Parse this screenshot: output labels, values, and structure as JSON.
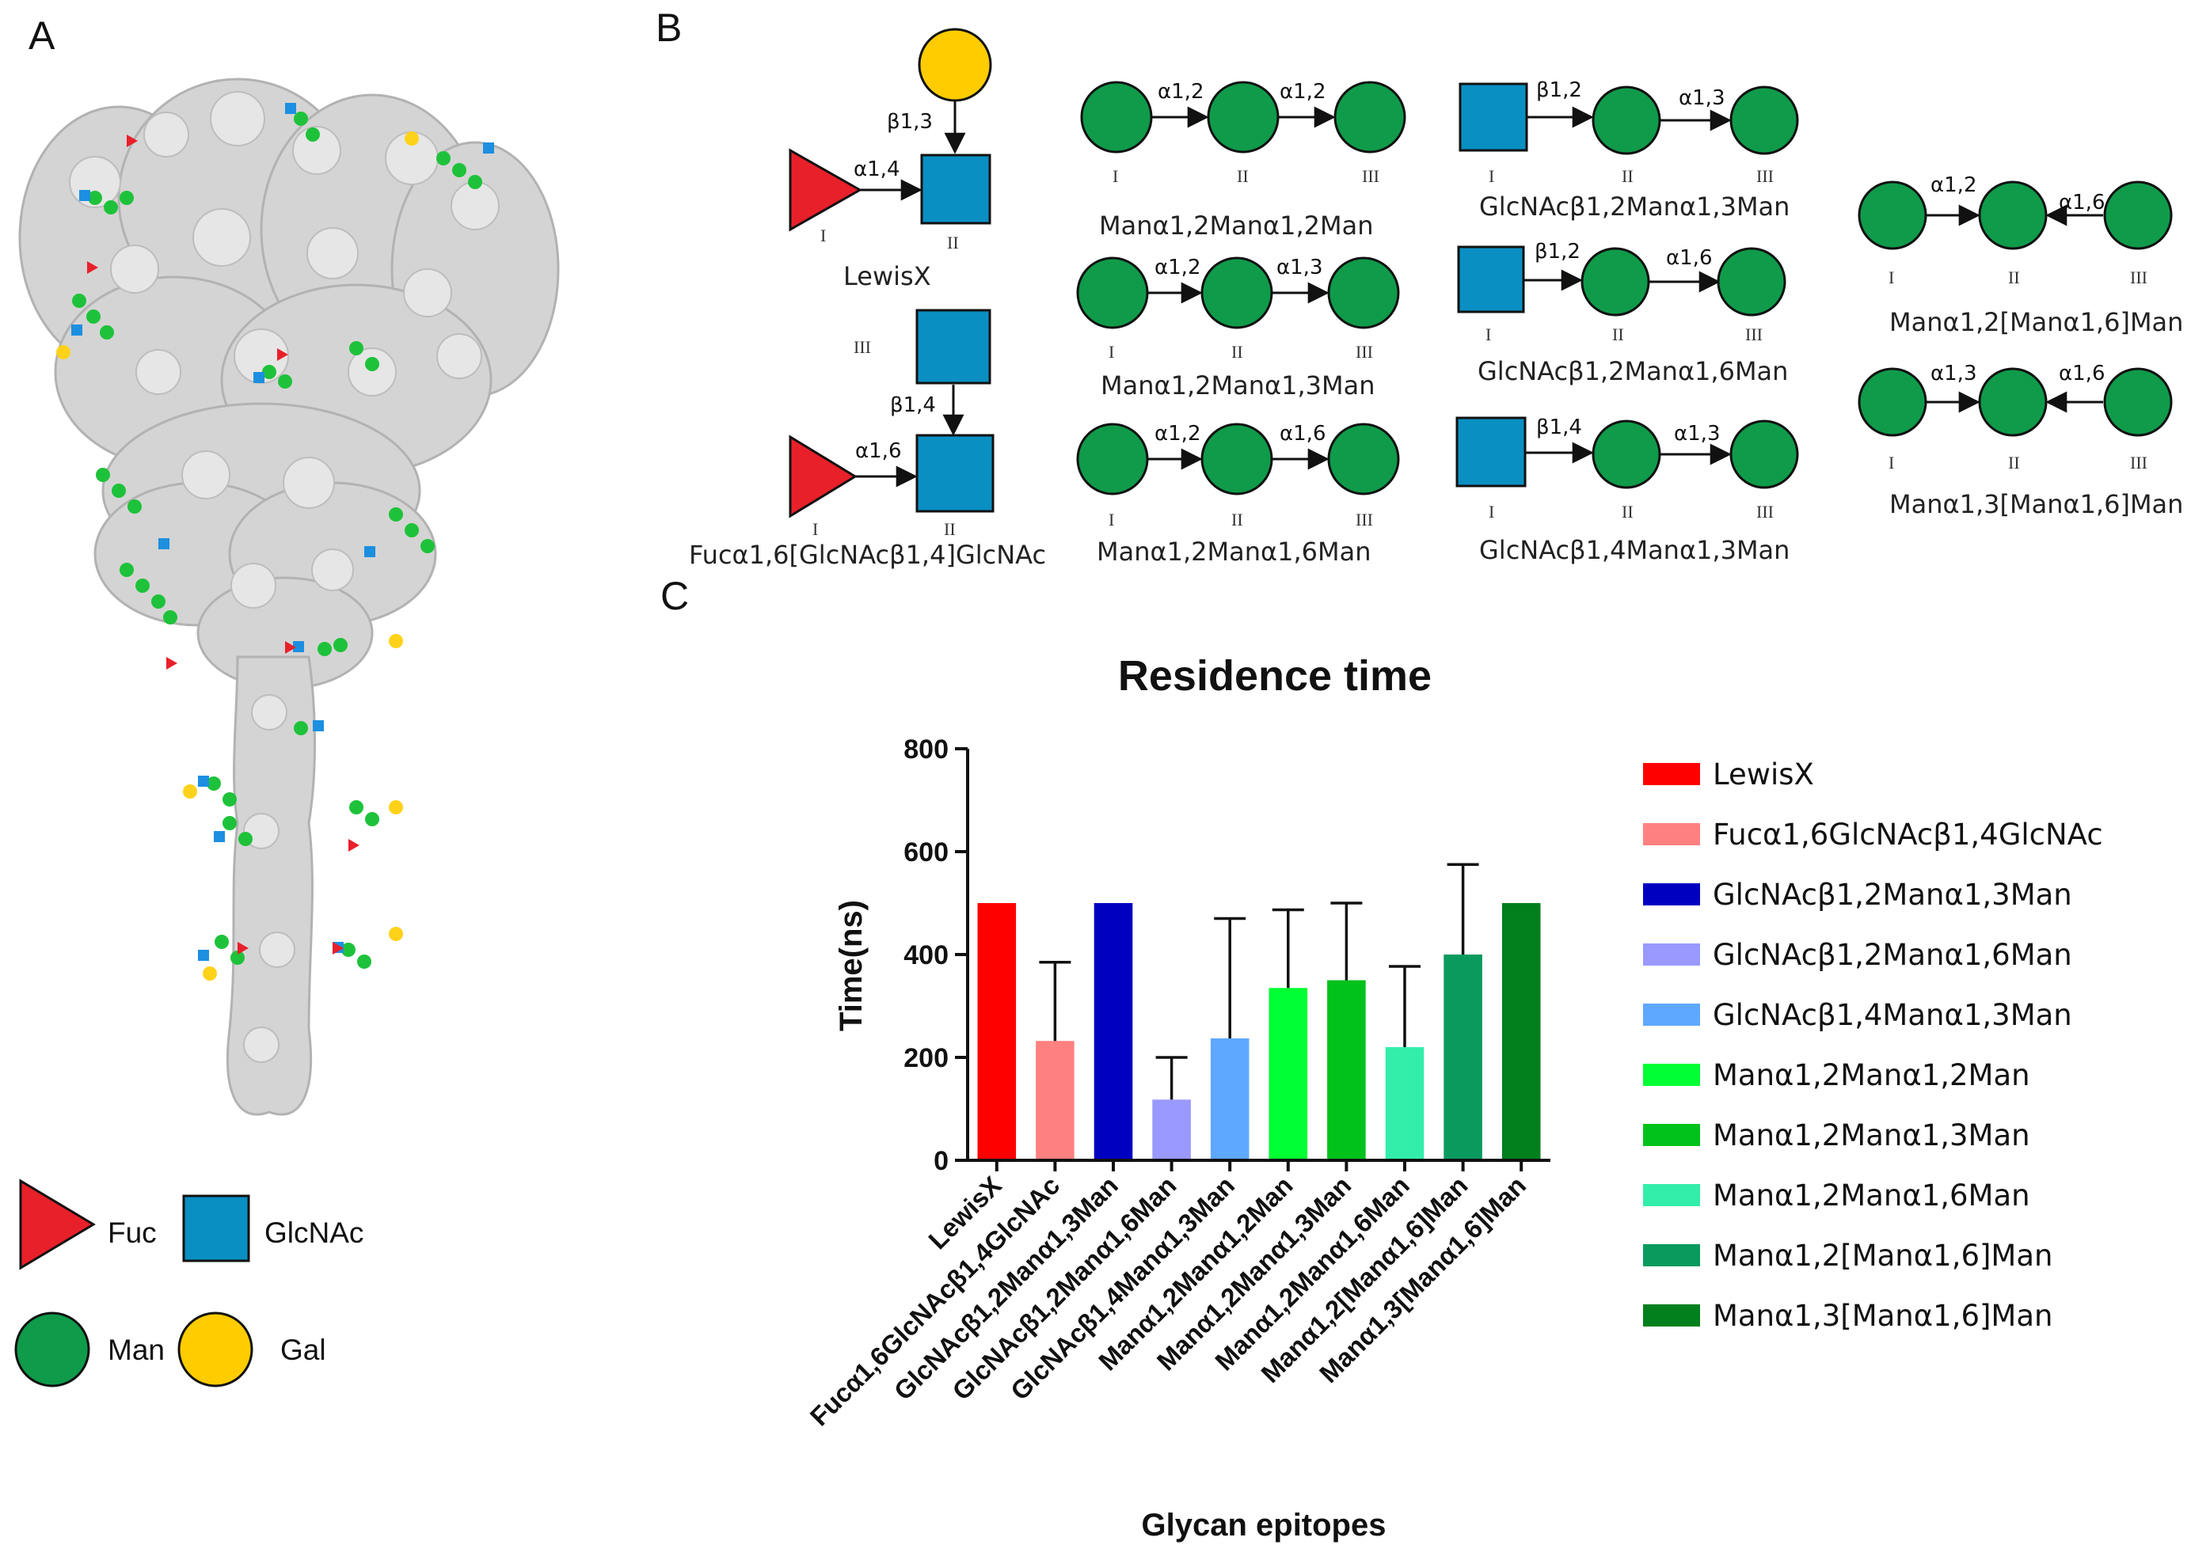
{
  "panels": {
    "a": "A",
    "b": "B",
    "c": "C"
  },
  "colors": {
    "fuc": "#e8202a",
    "glcnac": "#0a8fc3",
    "man": "#0f9b4a",
    "gal": "#ffcc00",
    "protein": "#cfcfcf"
  },
  "legend_a": {
    "fuc": "Fuc",
    "glcnac": "GlcNAc",
    "man": "Man",
    "gal": "Gal"
  },
  "glycans": {
    "lewisx": {
      "name": "LewisX",
      "link_gal": "β1,3",
      "link_fuc": "α1,4",
      "num_i": "I",
      "num_ii": "II"
    },
    "fuc_glcnac": {
      "name": "Fucα1,6[GlcNAcβ1,4]GlcNAc",
      "link_top": "β1,4",
      "link_fuc": "α1,6",
      "num_iii": "III",
      "num_i": "I",
      "num_ii": "II"
    },
    "m12m12": {
      "name": "Manα1,2Manα1,2Man",
      "link1": "α1,2",
      "link2": "α1,2"
    },
    "m12m13": {
      "name": "Manα1,2Manα1,3Man",
      "link1": "α1,2",
      "link2": "α1,3"
    },
    "m12m16": {
      "name": "Manα1,2Manα1,6Man",
      "link1": "α1,2",
      "link2": "α1,6"
    },
    "g12m13": {
      "name": "GlcNAcβ1,2Manα1,3Man",
      "link1": "β1,2",
      "link2": "α1,3"
    },
    "g12m16": {
      "name": "GlcNAcβ1,2Manα1,6Man",
      "link1": "β1,2",
      "link2": "α1,6"
    },
    "g14m13": {
      "name": "GlcNAcβ1,4Manα1,3Man",
      "link1": "β1,4",
      "link2": "α1,3"
    },
    "m12bm16": {
      "name": "Manα1,2[Manα1,6]Man",
      "link1": "α1,2",
      "link2": "α1,6"
    },
    "m13bm16": {
      "name": "Manα1,3[Manα1,6]Man",
      "link1": "α1,3",
      "link2": "α1,6"
    },
    "numerals": {
      "i": "I",
      "ii": "II",
      "iii": "III"
    }
  },
  "chart_data": {
    "type": "bar",
    "title": "Residence time",
    "xlabel": "Glycan epitopes",
    "ylabel": "Time(ns)",
    "ylim": [
      0,
      800
    ],
    "yticks": [
      0,
      200,
      400,
      600,
      800
    ],
    "categories": [
      "LewisX",
      "Fucα1,6GlcNAcβ1,4GlcNAc",
      "GlcNAcβ1,2Manα1,3Man",
      "GlcNAcβ1,2Manα1,6Man",
      "GlcNAcβ1,4Manα1,3Man",
      "Manα1,2Manα1,2Man",
      "Manα1,2Manα1,3Man",
      "Manα1,2Manα1,6Man",
      "Manα1,2[Manα1,6]Man",
      "Manα1,3[Manα1,6]Man"
    ],
    "values": [
      500,
      232,
      500,
      118,
      237,
      335,
      350,
      220,
      400,
      500
    ],
    "error_upper": [
      0,
      385,
      0,
      200,
      470,
      487,
      500,
      377,
      575,
      0
    ],
    "colors": [
      "#ff0000",
      "#ff8080",
      "#0000c0",
      "#9999ff",
      "#5fa8ff",
      "#00ff33",
      "#00c21a",
      "#33eeaa",
      "#0a9a5e",
      "#007f1c"
    ],
    "legend_position": "right"
  }
}
